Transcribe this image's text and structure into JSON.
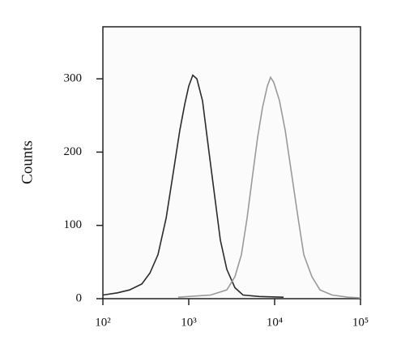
{
  "chart_data": {
    "type": "line",
    "y_label": "Counts",
    "xscale": "log",
    "xlim": [
      100,
      100000
    ],
    "xticks": [
      {
        "value": 100,
        "label": "10²"
      },
      {
        "value": 1000,
        "label": "10³"
      },
      {
        "value": 10000,
        "label": "10⁴"
      },
      {
        "value": 100000,
        "label": "10⁵"
      }
    ],
    "ylim": [
      0,
      371
    ],
    "yticks": [
      0,
      100,
      200,
      300
    ],
    "series": [
      {
        "color": "#2b2b2b",
        "x": [
          100,
          148,
          205,
          284,
          353,
          438,
          545,
          677,
          788,
          897,
          1000,
          1115,
          1242,
          1446,
          1722,
          2004,
          2333,
          2775,
          3451,
          4287,
          6620,
          12700
        ],
        "values": [
          5,
          8,
          12,
          20,
          35,
          60,
          110,
          180,
          230,
          265,
          290,
          305,
          300,
          270,
          200,
          140,
          80,
          40,
          15,
          5,
          3,
          2
        ]
      },
      {
        "color": "#9a9a9a",
        "x": [
          754,
          1798,
          2775,
          3451,
          4105,
          4775,
          5560,
          6340,
          7210,
          8220,
          8970,
          9790,
          11400,
          13270,
          15780,
          18790,
          21880,
          27180,
          33750,
          46770,
          72080,
          100000
        ],
        "values": [
          2,
          5,
          12,
          30,
          60,
          110,
          170,
          220,
          260,
          290,
          302,
          295,
          270,
          230,
          170,
          110,
          60,
          30,
          12,
          5,
          2,
          1
        ]
      }
    ]
  }
}
